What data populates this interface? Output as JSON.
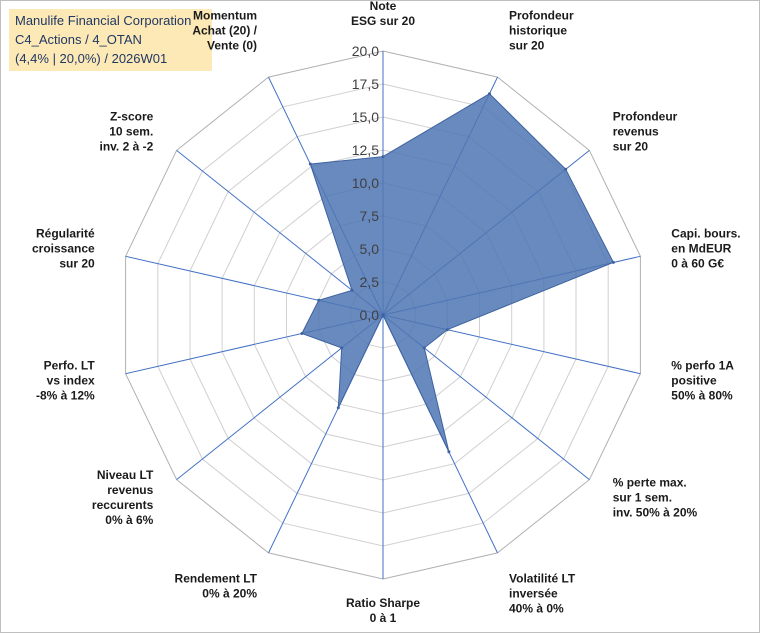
{
  "title": {
    "line1": "Manulife Financial Corporation",
    "line2": "C4_Actions / 4_OTAN",
    "line3": "(4,4% | 20,0%) / 2026W01"
  },
  "chart_data": {
    "type": "radar",
    "title": "Manulife Financial Corporation",
    "rmin": 0,
    "rmax": 20,
    "step": 2.5,
    "tick_labels": [
      "0,0",
      "2,5",
      "5,0",
      "7,5",
      "10,0",
      "12,5",
      "15,0",
      "17,5",
      "20,0"
    ],
    "axes": [
      {
        "label": [
          "Note",
          "ESG sur 20"
        ]
      },
      {
        "label": [
          "Profondeur",
          "historique",
          "sur 20"
        ]
      },
      {
        "label": [
          "Profondeur",
          "revenus",
          "sur 20"
        ]
      },
      {
        "label": [
          "Capi. bours.",
          "en MdEUR",
          "0 à 60 G€"
        ]
      },
      {
        "label": [
          "% perfo 1A",
          "positive",
          "50% à 80%"
        ]
      },
      {
        "label": [
          "% perte max.",
          "sur 1 sem.",
          "inv. 50% à 20%"
        ]
      },
      {
        "label": [
          "Volatilité LT",
          "inversée",
          "40% à 0%"
        ]
      },
      {
        "label": [
          "Ratio Sharpe",
          "0 à 1"
        ]
      },
      {
        "label": [
          "Rendement LT",
          "0% à 20%"
        ]
      },
      {
        "label": [
          "Niveau LT",
          "revenus",
          "reccurents",
          "0% à 6%"
        ]
      },
      {
        "label": [
          "Perfo. LT",
          "vs index",
          "-8% à 12%"
        ]
      },
      {
        "label": [
          "Régularité",
          "croissance",
          "sur 20"
        ]
      },
      {
        "label": [
          "Z-score",
          "10 sem.",
          "inv. 2 à -2"
        ]
      },
      {
        "label": [
          "Momentum",
          "Achat (20) /",
          "Vente (0)"
        ]
      }
    ],
    "series": [
      {
        "name": "Manulife Financial Corporation",
        "color": "#4f75b3",
        "values": [
          12.0,
          18.6,
          17.7,
          17.9,
          5.0,
          4.0,
          11.5,
          0.0,
          7.8,
          4.0,
          6.3,
          5.0,
          3.0,
          12.7
        ]
      }
    ]
  }
}
